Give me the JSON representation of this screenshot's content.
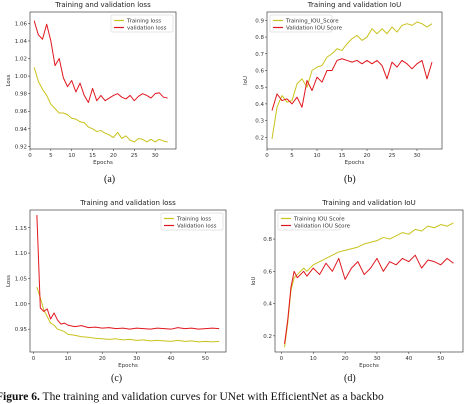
{
  "colors": {
    "train": "#c9c21c",
    "val": "#e0161e"
  },
  "caption": {
    "label": "Figure 6.",
    "text": "The training and validation curves for UNet with EfficientNet as a backbo"
  },
  "panels": [
    {
      "id": "a",
      "sublabel": "(a)"
    },
    {
      "id": "b",
      "sublabel": "(b)"
    },
    {
      "id": "c",
      "sublabel": "(c)"
    },
    {
      "id": "d",
      "sublabel": "(d)"
    }
  ],
  "chart_data": [
    {
      "type": "line",
      "title": "Training and validation loss",
      "xlabel": "Epochs",
      "ylabel": "Loss",
      "xlim": [
        0,
        35
      ],
      "ylim": [
        0.917,
        1.073
      ],
      "xticks": [
        0,
        5,
        10,
        15,
        20,
        25,
        30
      ],
      "yticks": [
        0.92,
        0.94,
        0.96,
        0.98,
        1.0,
        1.02,
        1.04,
        1.06
      ],
      "ytick_labels": [
        "0.92",
        "0.94",
        "0.96",
        "0.98",
        "1.00",
        "1.02",
        "1.04",
        "1.06"
      ],
      "grid": false,
      "legend": "top-right",
      "series": [
        {
          "name": "Training loss",
          "color": "#c9c21c",
          "x": [
            1,
            2,
            3,
            4,
            5,
            6,
            7,
            8,
            9,
            10,
            11,
            12,
            13,
            14,
            15,
            16,
            17,
            18,
            19,
            20,
            21,
            22,
            23,
            24,
            25,
            26,
            27,
            28,
            29,
            30,
            31,
            32,
            33
          ],
          "y": [
            1.01,
            0.994,
            0.985,
            0.978,
            0.968,
            0.963,
            0.958,
            0.958,
            0.956,
            0.952,
            0.951,
            0.948,
            0.947,
            0.942,
            0.94,
            0.937,
            0.938,
            0.935,
            0.933,
            0.93,
            0.936,
            0.929,
            0.932,
            0.927,
            0.925,
            0.929,
            0.928,
            0.925,
            0.928,
            0.925,
            0.928,
            0.926,
            0.925
          ]
        },
        {
          "name": "validation loss",
          "color": "#e0161e",
          "x": [
            1,
            2,
            3,
            4,
            5,
            6,
            7,
            8,
            9,
            10,
            11,
            12,
            13,
            14,
            15,
            16,
            17,
            18,
            19,
            20,
            21,
            22,
            23,
            24,
            25,
            26,
            27,
            28,
            29,
            30,
            31,
            32,
            33
          ],
          "y": [
            1.063,
            1.047,
            1.042,
            1.059,
            1.04,
            1.012,
            1.02,
            0.998,
            0.988,
            0.995,
            0.982,
            0.992,
            0.978,
            0.97,
            0.986,
            0.972,
            0.978,
            0.972,
            0.975,
            0.978,
            0.98,
            0.976,
            0.974,
            0.978,
            0.972,
            0.977,
            0.98,
            0.978,
            0.975,
            0.98,
            0.981,
            0.976,
            0.975
          ]
        }
      ]
    },
    {
      "type": "line",
      "title": "Training and validation IoU",
      "xlabel": "Epochs",
      "ylabel": "IoU",
      "xlim": [
        0,
        35
      ],
      "ylim": [
        0.13,
        0.95
      ],
      "xticks": [
        0,
        5,
        10,
        15,
        20,
        25,
        30
      ],
      "yticks": [
        0.2,
        0.3,
        0.4,
        0.5,
        0.6,
        0.7,
        0.8,
        0.9
      ],
      "ytick_labels": [
        "0.2",
        "0.3",
        "0.4",
        "0.5",
        "0.6",
        "0.7",
        "0.8",
        "0.9"
      ],
      "grid": false,
      "legend": "top-left",
      "series": [
        {
          "name": "Training_IOU_Score",
          "color": "#c9c21c",
          "x": [
            1,
            2,
            3,
            4,
            5,
            6,
            7,
            8,
            9,
            10,
            11,
            12,
            13,
            14,
            15,
            16,
            17,
            18,
            19,
            20,
            21,
            22,
            23,
            24,
            25,
            26,
            27,
            28,
            29,
            30,
            31,
            32,
            33
          ],
          "y": [
            0.19,
            0.38,
            0.45,
            0.41,
            0.42,
            0.52,
            0.55,
            0.5,
            0.6,
            0.62,
            0.63,
            0.68,
            0.7,
            0.73,
            0.72,
            0.76,
            0.79,
            0.81,
            0.78,
            0.8,
            0.85,
            0.82,
            0.85,
            0.82,
            0.86,
            0.83,
            0.87,
            0.88,
            0.87,
            0.89,
            0.88,
            0.86,
            0.88
          ]
        },
        {
          "name": "Validation IOU Score",
          "color": "#e0161e",
          "x": [
            1,
            2,
            3,
            4,
            5,
            6,
            7,
            8,
            9,
            10,
            11,
            12,
            13,
            14,
            15,
            16,
            17,
            18,
            19,
            20,
            21,
            22,
            23,
            24,
            25,
            26,
            27,
            28,
            29,
            30,
            31,
            32,
            33
          ],
          "y": [
            0.36,
            0.46,
            0.42,
            0.43,
            0.4,
            0.44,
            0.38,
            0.54,
            0.48,
            0.56,
            0.53,
            0.6,
            0.6,
            0.66,
            0.67,
            0.66,
            0.65,
            0.66,
            0.64,
            0.66,
            0.64,
            0.66,
            0.63,
            0.55,
            0.65,
            0.62,
            0.66,
            0.64,
            0.61,
            0.64,
            0.66,
            0.55,
            0.65
          ]
        }
      ]
    },
    {
      "type": "line",
      "title": "Training and validation loss",
      "xlabel": "Epochs",
      "ylabel": "Loss",
      "xlim": [
        -1,
        56
      ],
      "ylim": [
        0.905,
        1.185
      ],
      "xticks": [
        0,
        10,
        20,
        30,
        40,
        50
      ],
      "yticks": [
        0.95,
        1.0,
        1.05,
        1.1,
        1.15
      ],
      "ytick_labels": [
        "0.95",
        "1.00",
        "1.05",
        "1.10",
        "1.15"
      ],
      "grid": false,
      "legend": "top-right",
      "series": [
        {
          "name": "Training loss",
          "color": "#c9c21c",
          "x": [
            1,
            2,
            3,
            4,
            5,
            6,
            7,
            8,
            9,
            10,
            12,
            14,
            16,
            18,
            20,
            22,
            24,
            26,
            28,
            30,
            32,
            34,
            36,
            38,
            40,
            42,
            44,
            46,
            48,
            50,
            52,
            54
          ],
          "y": [
            1.033,
            1.012,
            0.988,
            0.975,
            0.962,
            0.958,
            0.95,
            0.948,
            0.945,
            0.94,
            0.938,
            0.935,
            0.934,
            0.932,
            0.931,
            0.93,
            0.931,
            0.929,
            0.93,
            0.928,
            0.929,
            0.927,
            0.928,
            0.927,
            0.926,
            0.928,
            0.926,
            0.927,
            0.925,
            0.926,
            0.925,
            0.926
          ]
        },
        {
          "name": "Validation loss",
          "color": "#e0161e",
          "x": [
            1,
            2,
            3,
            4,
            5,
            6,
            7,
            8,
            9,
            10,
            12,
            14,
            16,
            18,
            20,
            22,
            24,
            26,
            28,
            30,
            32,
            34,
            36,
            38,
            40,
            42,
            44,
            46,
            48,
            50,
            52,
            54
          ],
          "y": [
            1.175,
            0.992,
            0.985,
            0.99,
            0.97,
            0.982,
            0.968,
            0.96,
            0.962,
            0.958,
            0.955,
            0.957,
            0.953,
            0.954,
            0.952,
            0.953,
            0.951,
            0.952,
            0.95,
            0.952,
            0.951,
            0.95,
            0.952,
            0.951,
            0.95,
            0.953,
            0.951,
            0.952,
            0.95,
            0.951,
            0.952,
            0.951
          ]
        }
      ]
    },
    {
      "type": "line",
      "title": "Training and validation IoU",
      "xlabel": "Epochs",
      "ylabel": "IoU",
      "xlim": [
        -2,
        57
      ],
      "ylim": [
        0.1,
        0.98
      ],
      "xticks": [
        0,
        10,
        20,
        30,
        40,
        50
      ],
      "yticks": [
        0.2,
        0.4,
        0.6,
        0.8
      ],
      "ytick_labels": [
        "0.2",
        "0.4",
        "0.6",
        "0.8"
      ],
      "grid": false,
      "legend": "top-left",
      "series": [
        {
          "name": "Training IOU Score",
          "color": "#c9c21c",
          "x": [
            1,
            2,
            3,
            4,
            5,
            6,
            7,
            8,
            10,
            12,
            14,
            16,
            18,
            20,
            22,
            24,
            26,
            28,
            30,
            32,
            34,
            36,
            38,
            40,
            42,
            44,
            46,
            48,
            50,
            52,
            54
          ],
          "y": [
            0.13,
            0.28,
            0.48,
            0.56,
            0.58,
            0.6,
            0.62,
            0.6,
            0.64,
            0.66,
            0.68,
            0.7,
            0.72,
            0.73,
            0.74,
            0.75,
            0.77,
            0.78,
            0.79,
            0.81,
            0.8,
            0.82,
            0.84,
            0.83,
            0.86,
            0.85,
            0.88,
            0.87,
            0.89,
            0.88,
            0.9
          ]
        },
        {
          "name": "Validation IOU Score",
          "color": "#e0161e",
          "x": [
            1,
            2,
            3,
            4,
            5,
            6,
            7,
            8,
            10,
            12,
            14,
            16,
            18,
            20,
            22,
            24,
            26,
            28,
            30,
            32,
            34,
            36,
            38,
            40,
            42,
            44,
            46,
            48,
            50,
            52,
            54
          ],
          "y": [
            0.15,
            0.3,
            0.5,
            0.6,
            0.56,
            0.58,
            0.6,
            0.57,
            0.62,
            0.58,
            0.65,
            0.6,
            0.68,
            0.55,
            0.62,
            0.66,
            0.58,
            0.62,
            0.68,
            0.6,
            0.66,
            0.64,
            0.68,
            0.66,
            0.7,
            0.62,
            0.67,
            0.66,
            0.64,
            0.68,
            0.65
          ]
        }
      ]
    }
  ]
}
